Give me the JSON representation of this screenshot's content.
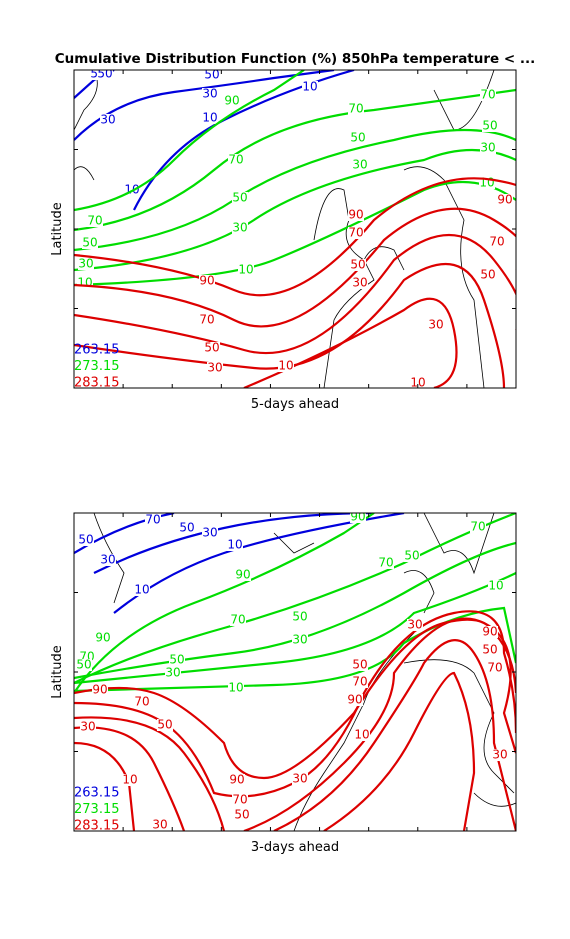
{
  "title": "Cumulative Distribution Function (%) 850hPa temperature < ...",
  "panels": [
    {
      "xlabel": "5-days ahead",
      "ylabel": "Latitude",
      "series": [
        {
          "name": "263.15",
          "color": "#0000dd",
          "labels": [
            "50",
            "50",
            "50",
            "30",
            "10",
            "10",
            "30",
            "10"
          ]
        },
        {
          "name": "273.15",
          "color": "#00dd00",
          "labels": [
            "90",
            "70",
            "70",
            "70",
            "50",
            "50",
            "30",
            "30",
            "10",
            "10",
            "50",
            "30",
            "70",
            "50",
            "30",
            "10"
          ]
        },
        {
          "name": "283.15",
          "color": "#dd0000",
          "labels": [
            "90",
            "90",
            "90",
            "70",
            "70",
            "70",
            "50",
            "50",
            "50",
            "30",
            "30",
            "10",
            "10",
            "30"
          ]
        }
      ]
    },
    {
      "xlabel": "3-days ahead",
      "ylabel": "Latitude",
      "series": [
        {
          "name": "263.15",
          "color": "#0000dd",
          "labels": [
            "70",
            "50",
            "30",
            "10",
            "50",
            "30",
            "10"
          ]
        },
        {
          "name": "273.15",
          "color": "#00dd00",
          "labels": [
            "90",
            "90",
            "70",
            "70",
            "70",
            "50",
            "50",
            "50",
            "30",
            "30",
            "10",
            "10",
            "90",
            "70",
            "50"
          ]
        },
        {
          "name": "283.15",
          "color": "#dd0000",
          "labels": [
            "90",
            "70",
            "50",
            "30",
            "10",
            "30",
            "90",
            "70",
            "50",
            "30",
            "10",
            "30",
            "50",
            "70",
            "90",
            "30",
            "50",
            "70",
            "90"
          ]
        }
      ]
    }
  ]
}
